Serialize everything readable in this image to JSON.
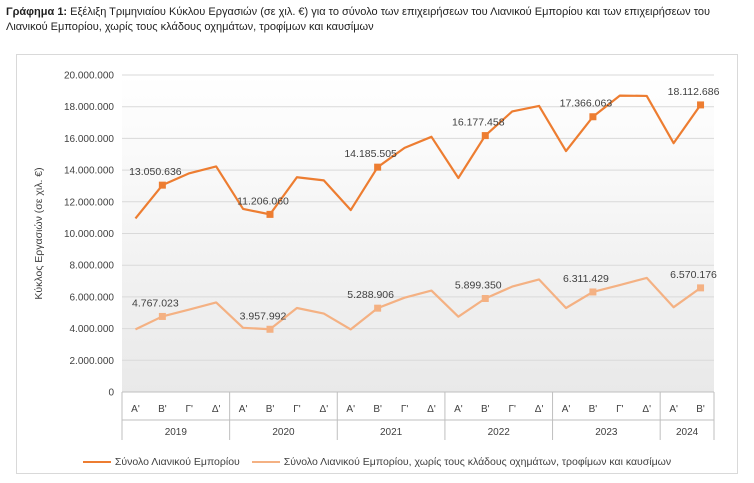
{
  "title": {
    "bold": "Γράφημα 1:",
    "text": " Εξέλιξη Τριμηνιαίου Κύκλου Εργασιών (σε χιλ. €) για το σύνολο των επιχειρήσεων του Λιανικού Εμπορίου και των επιχειρήσεων του Λιανικού Εμπορίου, χωρίς τους κλάδους οχημάτων, τροφίμων και καυσίμων"
  },
  "chart_data": {
    "type": "line",
    "ylabel": "Κύκλος Εργασιών (σε χιλ. €)",
    "ylim": [
      0,
      20000000
    ],
    "yticks": [
      {
        "value": 0,
        "label": "0"
      },
      {
        "value": 2000000,
        "label": "2.000.000"
      },
      {
        "value": 4000000,
        "label": "4.000.000"
      },
      {
        "value": 6000000,
        "label": "6.000.000"
      },
      {
        "value": 8000000,
        "label": "8.000.000"
      },
      {
        "value": 10000000,
        "label": "10.000.000"
      },
      {
        "value": 12000000,
        "label": "12.000.000"
      },
      {
        "value": 14000000,
        "label": "14.000.000"
      },
      {
        "value": 16000000,
        "label": "16.000.000"
      },
      {
        "value": 18000000,
        "label": "18.000.000"
      },
      {
        "value": 20000000,
        "label": "20.000.000"
      }
    ],
    "quarters": [
      "Α'",
      "Β'",
      "Γ'",
      "Δ'",
      "Α'",
      "Β'",
      "Γ'",
      "Δ'",
      "Α'",
      "Β'",
      "Γ'",
      "Δ'",
      "Α'",
      "Β'",
      "Γ'",
      "Δ'",
      "Α'",
      "Β'",
      "Γ'",
      "Δ'",
      "Α'",
      "Β'"
    ],
    "years": [
      {
        "label": "2019",
        "count": 4
      },
      {
        "label": "2020",
        "count": 4
      },
      {
        "label": "2021",
        "count": 4
      },
      {
        "label": "2022",
        "count": 4
      },
      {
        "label": "2023",
        "count": 4
      },
      {
        "label": "2024",
        "count": 2
      }
    ],
    "grid": true,
    "legend_position": "bottom",
    "series": [
      {
        "name": "Σύνολο Λιανικού Εμπορίου",
        "color": "#ED7D31",
        "values": [
          10950000,
          13050636,
          13800000,
          14230000,
          11550000,
          11206060,
          13550000,
          13350000,
          11480000,
          14185505,
          15400000,
          16100000,
          13500000,
          16177458,
          17700000,
          18050000,
          15200000,
          17366063,
          18700000,
          18680000,
          15700000,
          18112686
        ],
        "labels": [
          {
            "index": 1,
            "text": "13.050.636"
          },
          {
            "index": 5,
            "text": "11.206.060"
          },
          {
            "index": 9,
            "text": "14.185.505"
          },
          {
            "index": 13,
            "text": "16.177.458"
          },
          {
            "index": 17,
            "text": "17.366.063"
          },
          {
            "index": 21,
            "text": "18.112.686"
          }
        ]
      },
      {
        "name": "Σύνολο Λιανικού Εμπορίου, χωρίς τους κλάδους οχημάτων, τροφίμων και καυσίμων",
        "color": "#F4B183",
        "values": [
          3950000,
          4767023,
          5200000,
          5650000,
          4050000,
          3957992,
          5300000,
          4950000,
          3950000,
          5288906,
          5950000,
          6400000,
          4750000,
          5899350,
          6650000,
          7100000,
          5300000,
          6311429,
          6750000,
          7200000,
          5350000,
          6570176
        ],
        "labels": [
          {
            "index": 1,
            "text": "4.767.023"
          },
          {
            "index": 5,
            "text": "3.957.992"
          },
          {
            "index": 9,
            "text": "5.288.906"
          },
          {
            "index": 13,
            "text": "5.899.350"
          },
          {
            "index": 17,
            "text": "6.311.429"
          },
          {
            "index": 21,
            "text": "6.570.176"
          }
        ]
      }
    ]
  }
}
